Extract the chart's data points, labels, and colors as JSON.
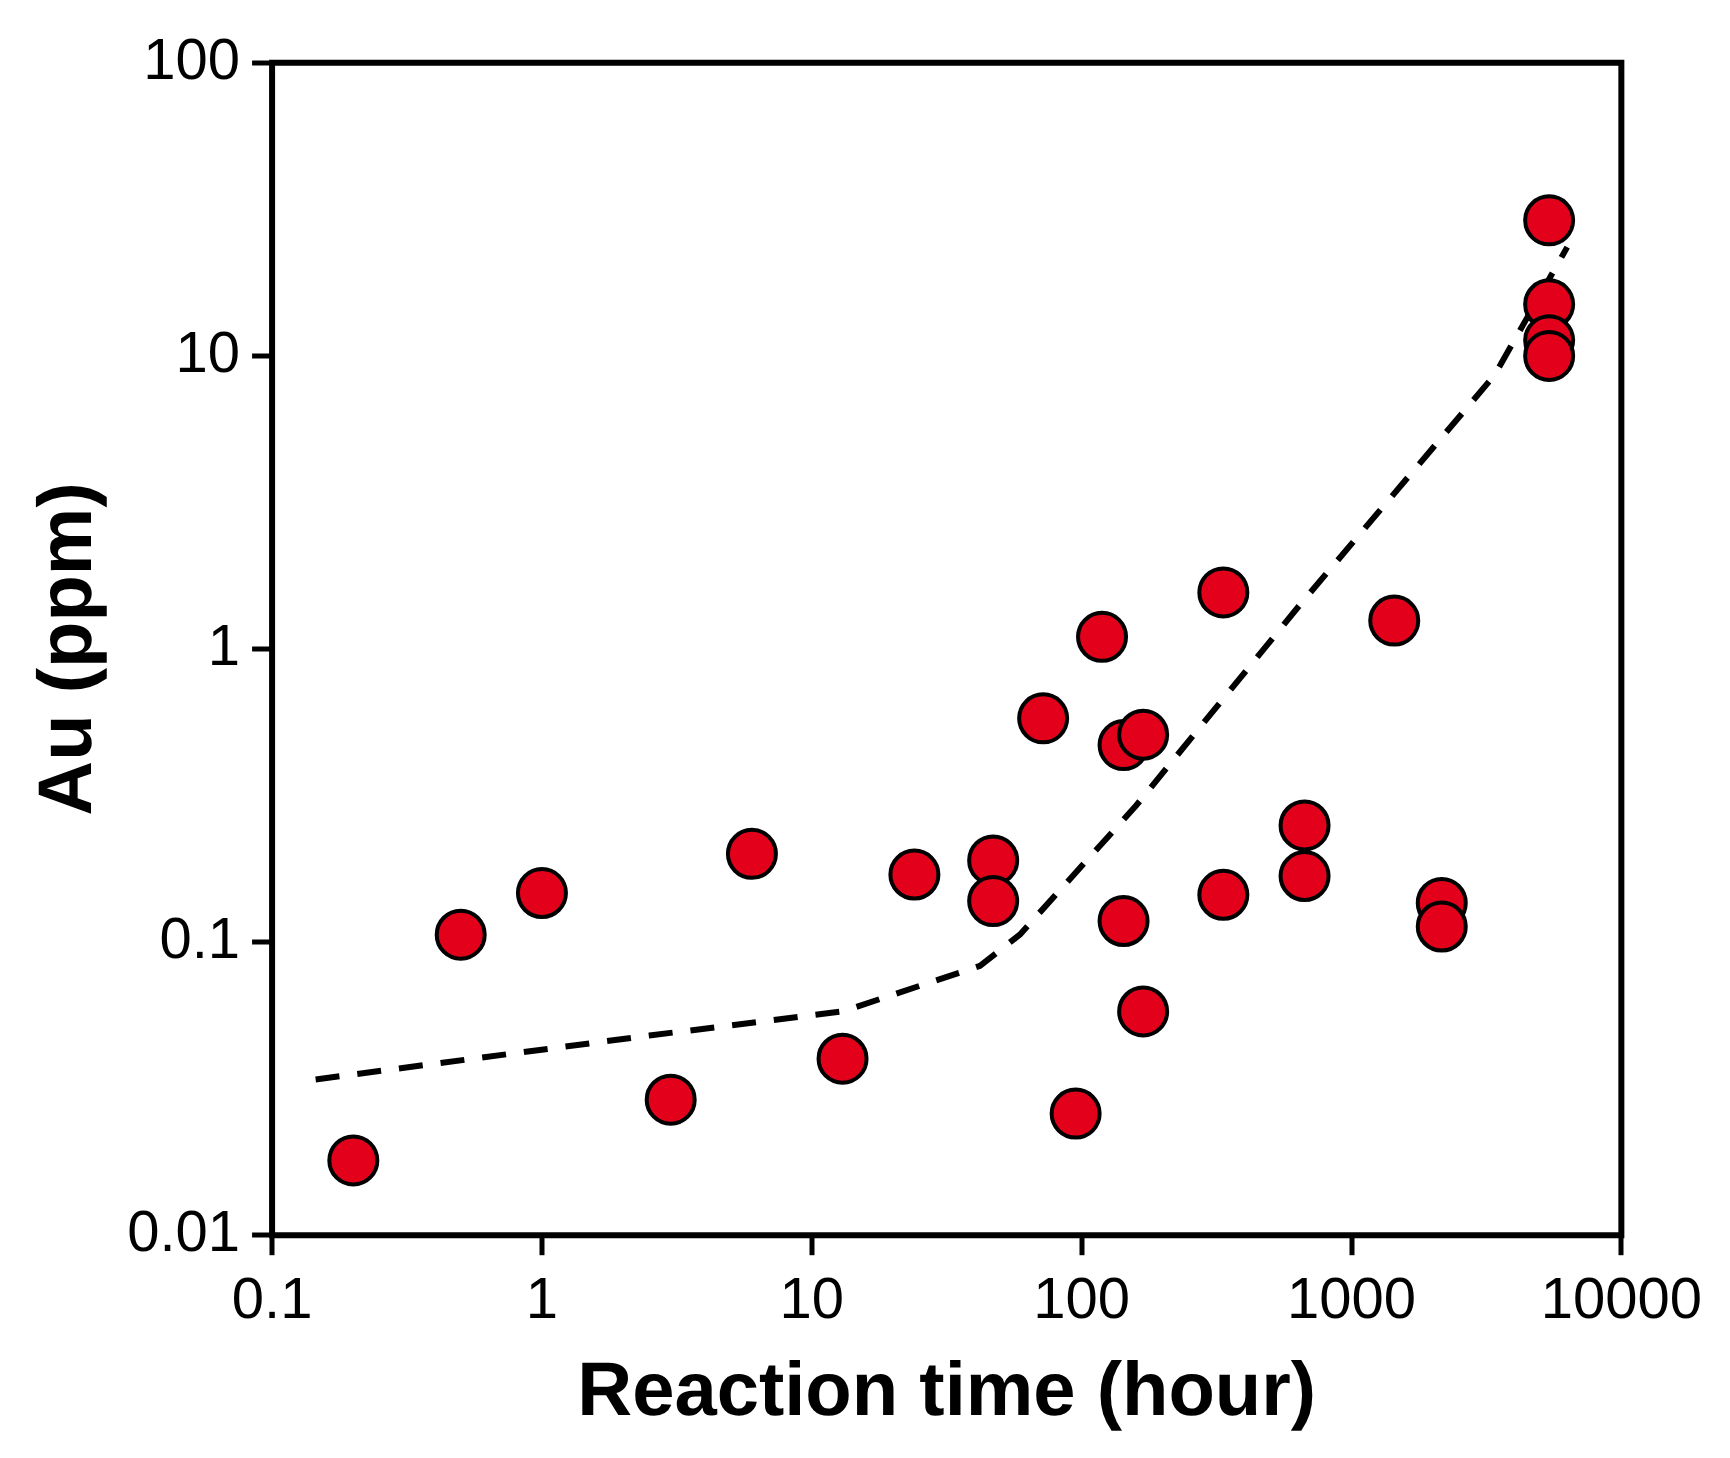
{
  "chart_data": {
    "type": "scatter",
    "xlabel": "Reaction time (hour)",
    "ylabel": "Au (ppm)",
    "log": "xy",
    "grid": false,
    "legend": false,
    "marker": "circle",
    "xlim": [
      0.1,
      10000
    ],
    "xticks": [
      0.1,
      1,
      10,
      100,
      1000,
      10000
    ],
    "ylim": [
      0.01,
      100
    ],
    "yticks": [
      0.01,
      0.1,
      1,
      10,
      100
    ],
    "series": [
      {
        "type": "scatter",
        "color": "#e3001b",
        "x": [
          0.2,
          0.5,
          1,
          3,
          6,
          13,
          24,
          47,
          47,
          72,
          95,
          119,
          143,
          169,
          143,
          169,
          335,
          335,
          670,
          670,
          1440,
          2160,
          2160,
          5400,
          5400,
          5400,
          5400
        ],
        "values": [
          0.018,
          0.106,
          0.147,
          0.029,
          0.2,
          0.04,
          0.17,
          0.19,
          0.138,
          0.58,
          0.026,
          1.1,
          0.47,
          0.51,
          0.118,
          0.058,
          1.56,
          0.145,
          0.25,
          0.168,
          1.25,
          0.136,
          0.113,
          29,
          15,
          11.3,
          10
        ]
      },
      {
        "type": "line",
        "color": "#000000",
        "line_style": "dashed",
        "marker": "none",
        "x": [
          0.145,
          2.5,
          13,
          42,
          59,
          158,
          646,
          3390,
          6300
        ],
        "values": [
          0.034,
          0.048,
          0.058,
          0.083,
          0.106,
          0.29,
          1.42,
          8.6,
          23.5
        ]
      }
    ]
  }
}
